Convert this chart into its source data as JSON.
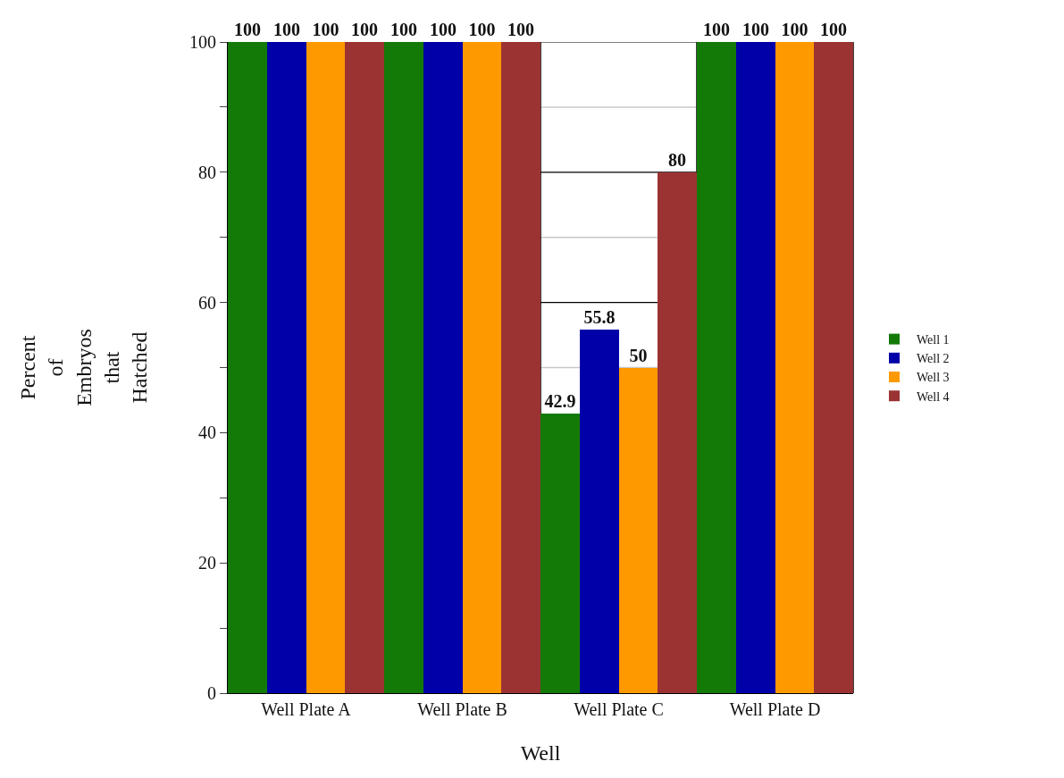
{
  "chart_data": {
    "type": "bar",
    "xlabel": "Well",
    "ylabel": "Percent of Embryos that Hatched",
    "categories": [
      "Well Plate A",
      "Well Plate B",
      "Well Plate C",
      "Well Plate D"
    ],
    "series": [
      {
        "name": "Well 1",
        "color": "#137a08",
        "values": [
          100,
          100,
          42.9,
          100
        ]
      },
      {
        "name": "Well 2",
        "color": "#0000a8",
        "values": [
          100,
          100,
          55.8,
          100
        ]
      },
      {
        "name": "Well 3",
        "color": "#ff9900",
        "values": [
          100,
          100,
          50,
          100
        ]
      },
      {
        "name": "Well 4",
        "color": "#9c3333",
        "values": [
          100,
          100,
          80,
          100
        ]
      }
    ],
    "ylim": [
      0,
      100
    ],
    "yticks": [
      0,
      {
        "value": 10,
        "label": null
      },
      20,
      {
        "value": 30,
        "label": null
      },
      40,
      {
        "value": 50,
        "label": null
      },
      60,
      {
        "value": 70,
        "label": null
      },
      80,
      {
        "value": 90,
        "label": null
      },
      100
    ],
    "grid": true,
    "legend": "right",
    "data_labels": true
  }
}
